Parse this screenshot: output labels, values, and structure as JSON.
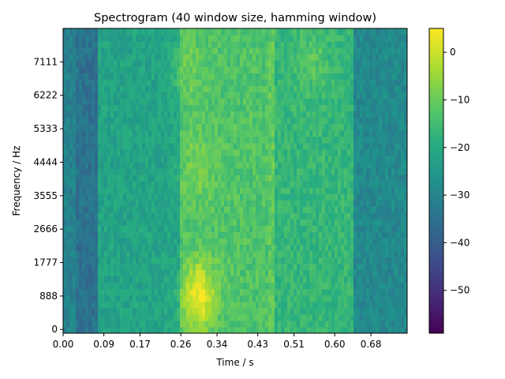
{
  "chart_data": {
    "type": "heatmap",
    "title": "Spectrogram (40 window size, hamming window)",
    "xlabel": "Time / s",
    "ylabel": "Frequency / Hz",
    "x_ticks": [
      "0.00",
      "0.09",
      "0.17",
      "0.26",
      "0.34",
      "0.43",
      "0.51",
      "0.60",
      "0.68"
    ],
    "y_ticks": [
      "0",
      "888",
      "1777",
      "2666",
      "3555",
      "4444",
      "5333",
      "6222",
      "7111"
    ],
    "xlim": [
      0,
      0.76
    ],
    "ylim": [
      -100,
      8000
    ],
    "colorbar": {
      "ticks": [
        "0",
        "−10",
        "−20",
        "−30",
        "−40",
        "−50"
      ],
      "tick_values": [
        0,
        -10,
        -20,
        -30,
        -40,
        -50
      ],
      "range": [
        -59,
        5
      ],
      "colormap": "viridis"
    },
    "time_segments": [
      {
        "start": 0.0,
        "end": 0.03,
        "level": -31
      },
      {
        "start": 0.03,
        "end": 0.08,
        "level": -35
      },
      {
        "start": 0.08,
        "end": 0.26,
        "level": -22
      },
      {
        "start": 0.26,
        "end": 0.45,
        "level": -13
      },
      {
        "start": 0.45,
        "end": 0.47,
        "level": -11
      },
      {
        "start": 0.47,
        "end": 0.64,
        "level": -17
      },
      {
        "start": 0.64,
        "end": 0.76,
        "level": -29
      }
    ],
    "hotspots": [
      {
        "time": 0.3,
        "freq": 900,
        "level": 4
      },
      {
        "time": 0.3,
        "freq": 4300,
        "level": -8
      },
      {
        "time": 0.28,
        "freq": 6800,
        "level": -10
      },
      {
        "time": 0.55,
        "freq": 7100,
        "level": -12
      }
    ]
  }
}
